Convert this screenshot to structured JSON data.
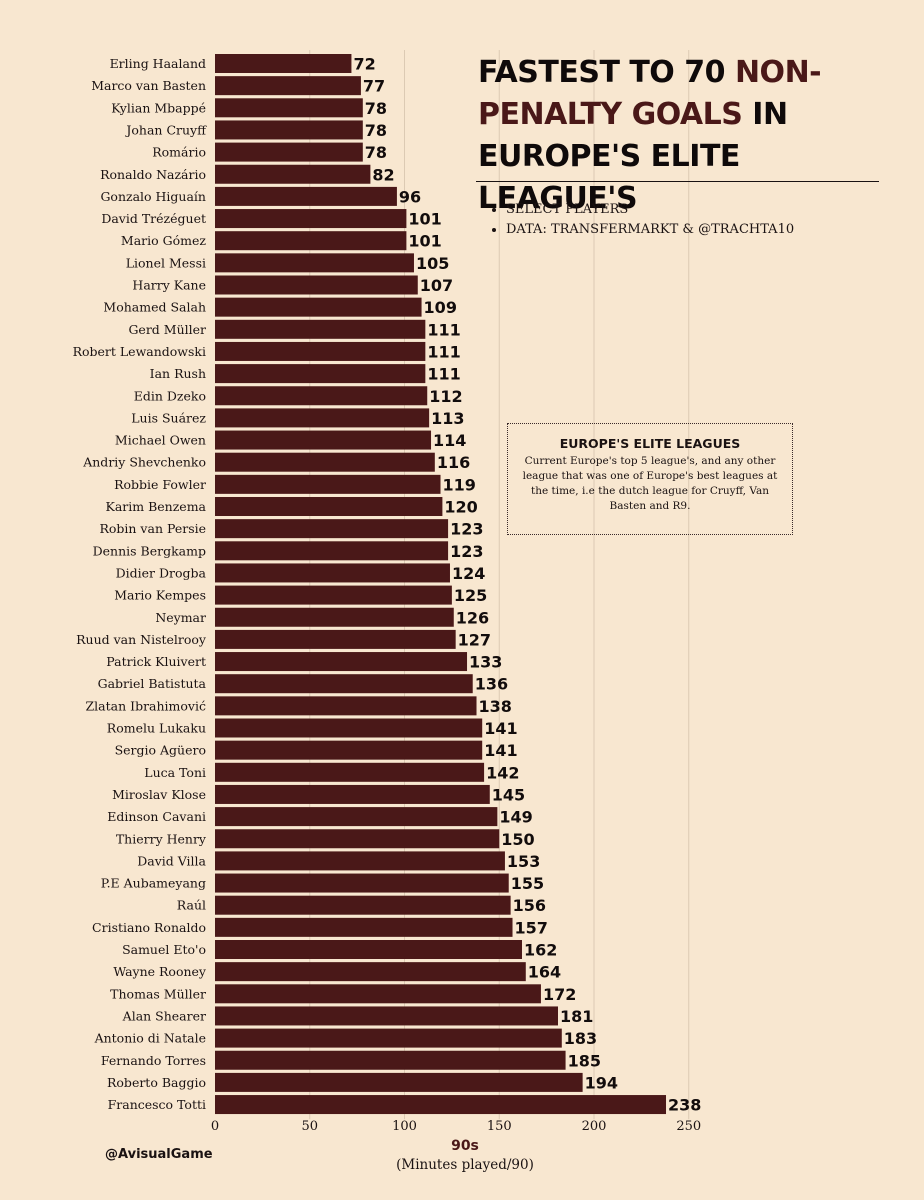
{
  "title": {
    "part1": "FASTEST TO 70 ",
    "accent1": "NON-PENALTY GOALS",
    "part2": " IN EUROPE'S ELITE LEAGUE'S"
  },
  "notes": [
    "SELECT PLAYERS",
    "DATA: TRANSFERMARKT & @TRACHTA10"
  ],
  "info_box": {
    "title": "EUROPE'S ELITE LEAGUES",
    "text": "Current Europe's top 5 league's, and any other league that was one of Europe's best leagues at the time, i.e the dutch league for Cruyff, Van Basten and R9."
  },
  "watermark": "@AvisualGame",
  "colors": {
    "background": "#f8e7d0",
    "bar": "#4a1818",
    "accent": "#4a1818",
    "grid": "#dccab3"
  },
  "chart_data": {
    "type": "bar",
    "orientation": "horizontal",
    "xlabel": "90s",
    "xlabel_sub": "(Minutes played/90)",
    "xlim": [
      0,
      250
    ],
    "xticks": [
      0,
      50,
      100,
      150,
      200,
      250
    ],
    "grid": "vertical",
    "categories": [
      "Erling Haaland",
      "Marco van Basten",
      "Kylian Mbappé",
      "Johan Cruyff",
      "Romário",
      "Ronaldo Nazário",
      "Gonzalo Higuaín",
      "David Trézéguet",
      "Mario Gómez",
      "Lionel Messi",
      "Harry Kane",
      "Mohamed Salah",
      "Gerd Müller",
      "Robert Lewandowski",
      "Ian Rush",
      "Edin Dzeko",
      "Luis Suárez",
      "Michael Owen",
      "Andriy Shevchenko",
      "Robbie Fowler",
      "Karim Benzema",
      "Robin van Persie",
      "Dennis Bergkamp",
      "Didier Drogba",
      "Mario Kempes",
      "Neymar",
      "Ruud van Nistelrooy",
      "Patrick Kluivert",
      "Gabriel Batistuta",
      "Zlatan Ibrahimović",
      "Romelu Lukaku",
      "Sergio Agüero",
      "Luca Toni",
      "Miroslav Klose",
      "Edinson Cavani",
      "Thierry Henry",
      "David Villa",
      "P.E Aubameyang",
      "Raúl",
      "Cristiano Ronaldo",
      "Samuel Eto'o",
      "Wayne Rooney",
      "Thomas Müller",
      "Alan Shearer",
      "Antonio di Natale",
      "Fernando Torres",
      "Roberto Baggio",
      "Francesco Totti"
    ],
    "values": [
      72,
      77,
      78,
      78,
      78,
      82,
      96,
      101,
      101,
      105,
      107,
      109,
      111,
      111,
      111,
      112,
      113,
      114,
      116,
      119,
      120,
      123,
      123,
      124,
      125,
      126,
      127,
      133,
      136,
      138,
      141,
      141,
      142,
      145,
      149,
      150,
      153,
      155,
      156,
      157,
      162,
      164,
      172,
      181,
      183,
      185,
      194,
      238
    ]
  }
}
